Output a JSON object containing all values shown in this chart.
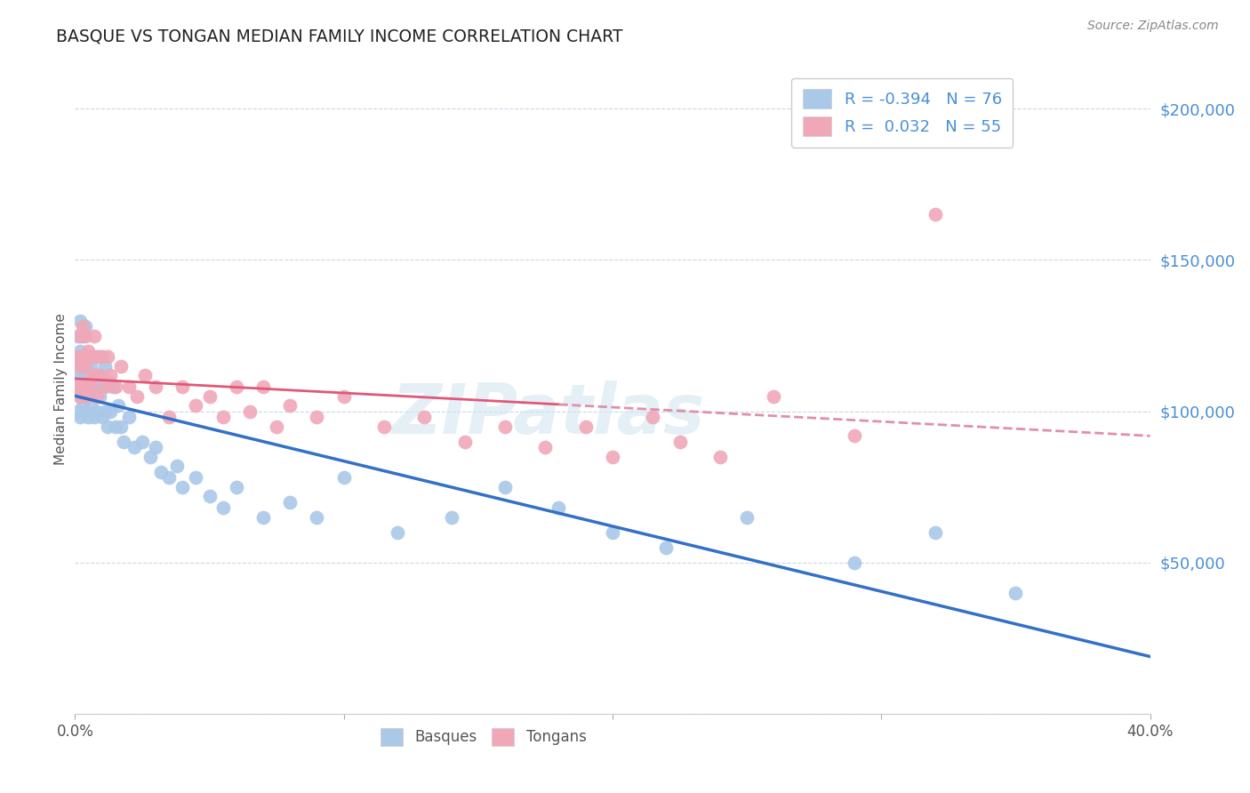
{
  "title": "BASQUE VS TONGAN MEDIAN FAMILY INCOME CORRELATION CHART",
  "source": "Source: ZipAtlas.com",
  "ylabel": "Median Family Income",
  "xlim": [
    0.0,
    0.4
  ],
  "ylim": [
    0,
    215000
  ],
  "yticks": [
    0,
    50000,
    100000,
    150000,
    200000
  ],
  "ytick_labels": [
    "",
    "$50,000",
    "$100,000",
    "$150,000",
    "$200,000"
  ],
  "xticks": [
    0.0,
    0.1,
    0.2,
    0.3,
    0.4
  ],
  "xtick_labels": [
    "0.0%",
    "",
    "",
    "",
    "40.0%"
  ],
  "background_color": "#ffffff",
  "grid_color": "#c8d8e8",
  "basque_color": "#aac8e8",
  "tongan_color": "#f0a8b8",
  "basque_line_color": "#3370c8",
  "tongan_line_color": "#e05878",
  "tongan_line_color_dash": "#e090a8",
  "R_basque": -0.394,
  "N_basque": 76,
  "R_tongan": 0.032,
  "N_tongan": 55,
  "legend_label_basque": "Basques",
  "legend_label_tongan": "Tongans",
  "watermark": "ZIPatlas",
  "basque_x": [
    0.001,
    0.001,
    0.001,
    0.001,
    0.001,
    0.002,
    0.002,
    0.002,
    0.002,
    0.002,
    0.002,
    0.002,
    0.003,
    0.003,
    0.003,
    0.003,
    0.003,
    0.003,
    0.004,
    0.004,
    0.004,
    0.004,
    0.004,
    0.005,
    0.005,
    0.005,
    0.005,
    0.006,
    0.006,
    0.006,
    0.007,
    0.007,
    0.007,
    0.008,
    0.008,
    0.009,
    0.009,
    0.01,
    0.01,
    0.011,
    0.011,
    0.012,
    0.012,
    0.013,
    0.014,
    0.015,
    0.016,
    0.017,
    0.018,
    0.02,
    0.022,
    0.025,
    0.028,
    0.03,
    0.032,
    0.035,
    0.038,
    0.04,
    0.045,
    0.05,
    0.055,
    0.06,
    0.07,
    0.08,
    0.09,
    0.1,
    0.12,
    0.14,
    0.16,
    0.18,
    0.2,
    0.22,
    0.25,
    0.29,
    0.32,
    0.35
  ],
  "basque_y": [
    118000,
    108000,
    125000,
    100000,
    112000,
    115000,
    108000,
    120000,
    105000,
    130000,
    110000,
    98000,
    118000,
    125000,
    108000,
    115000,
    102000,
    112000,
    118000,
    128000,
    108000,
    115000,
    100000,
    118000,
    110000,
    105000,
    98000,
    115000,
    108000,
    102000,
    118000,
    108000,
    98000,
    112000,
    100000,
    118000,
    105000,
    108000,
    98000,
    115000,
    100000,
    110000,
    95000,
    100000,
    108000,
    95000,
    102000,
    95000,
    90000,
    98000,
    88000,
    90000,
    85000,
    88000,
    80000,
    78000,
    82000,
    75000,
    78000,
    72000,
    68000,
    75000,
    65000,
    70000,
    65000,
    78000,
    60000,
    65000,
    75000,
    68000,
    60000,
    55000,
    65000,
    50000,
    60000,
    40000
  ],
  "tongan_x": [
    0.001,
    0.001,
    0.002,
    0.002,
    0.002,
    0.003,
    0.003,
    0.003,
    0.004,
    0.004,
    0.004,
    0.005,
    0.005,
    0.006,
    0.006,
    0.007,
    0.007,
    0.008,
    0.008,
    0.009,
    0.01,
    0.011,
    0.012,
    0.013,
    0.015,
    0.017,
    0.02,
    0.023,
    0.026,
    0.03,
    0.035,
    0.04,
    0.045,
    0.05,
    0.055,
    0.06,
    0.065,
    0.07,
    0.075,
    0.08,
    0.09,
    0.1,
    0.115,
    0.13,
    0.145,
    0.16,
    0.175,
    0.19,
    0.2,
    0.215,
    0.225,
    0.24,
    0.26,
    0.29,
    0.32
  ],
  "tongan_y": [
    118000,
    108000,
    125000,
    115000,
    105000,
    128000,
    118000,
    108000,
    125000,
    115000,
    105000,
    120000,
    110000,
    118000,
    108000,
    125000,
    112000,
    118000,
    105000,
    112000,
    118000,
    108000,
    118000,
    112000,
    108000,
    115000,
    108000,
    105000,
    112000,
    108000,
    98000,
    108000,
    102000,
    105000,
    98000,
    108000,
    100000,
    108000,
    95000,
    102000,
    98000,
    105000,
    95000,
    98000,
    90000,
    95000,
    88000,
    95000,
    85000,
    98000,
    90000,
    85000,
    105000,
    92000,
    165000
  ]
}
